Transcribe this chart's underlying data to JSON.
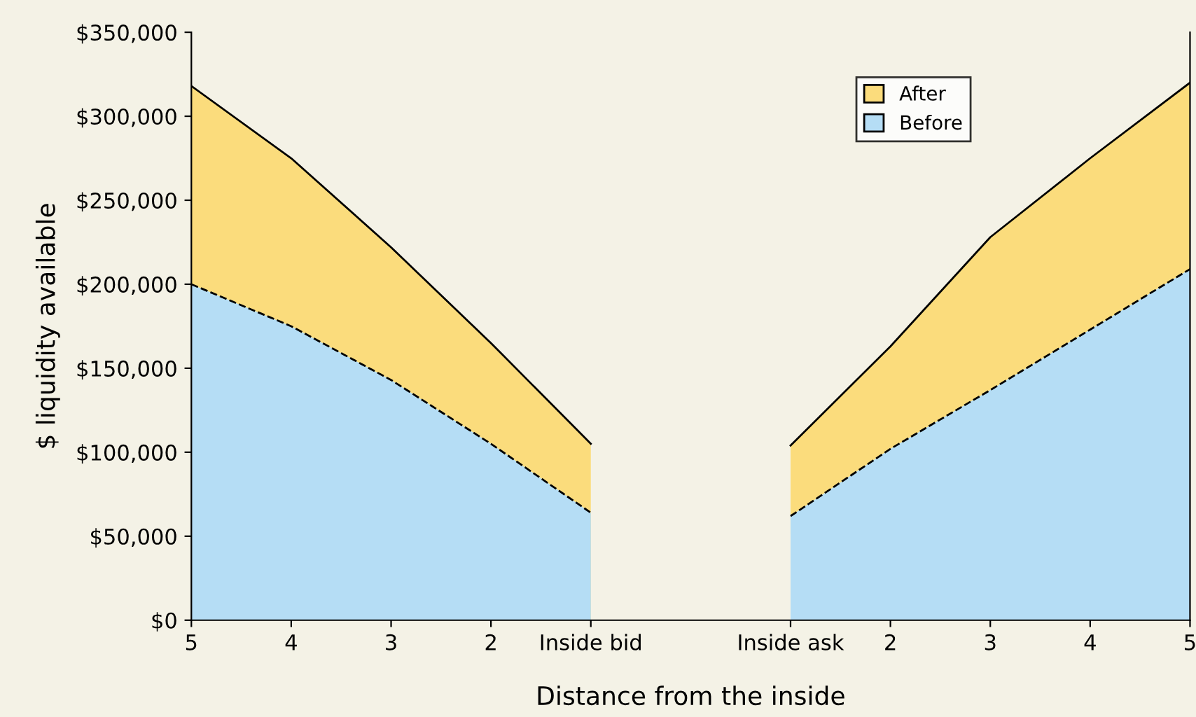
{
  "chart_data": {
    "type": "area",
    "xlabel": "Distance from the inside",
    "ylabel": "$ liquidity available",
    "categories": [
      "5",
      "4",
      "3",
      "2",
      "Inside bid",
      null,
      "Inside ask",
      "2",
      "3",
      "4",
      "5"
    ],
    "ylim": [
      0,
      350000
    ],
    "yticks": [
      {
        "value": 0,
        "label": "$0"
      },
      {
        "value": 50000,
        "label": "$50,000"
      },
      {
        "value": 100000,
        "label": "$100,000"
      },
      {
        "value": 150000,
        "label": "$150,000"
      },
      {
        "value": 200000,
        "label": "$200,000"
      },
      {
        "value": 250000,
        "label": "$250,000"
      },
      {
        "value": 300000,
        "label": "$300,000"
      },
      {
        "value": 350000,
        "label": "$350,000"
      }
    ],
    "grid": false,
    "legend": "top right",
    "series": [
      {
        "name": "After",
        "color": "#fbdc7c",
        "line_style": "solid",
        "values": [
          318000,
          275000,
          222000,
          165000,
          105000,
          null,
          104000,
          163000,
          228000,
          275000,
          320000
        ]
      },
      {
        "name": "Before",
        "color": "#b5ddf5",
        "line_style": "dashed",
        "values": [
          200000,
          175000,
          143000,
          105000,
          64000,
          null,
          62000,
          102000,
          137000,
          173000,
          209000
        ]
      }
    ]
  }
}
